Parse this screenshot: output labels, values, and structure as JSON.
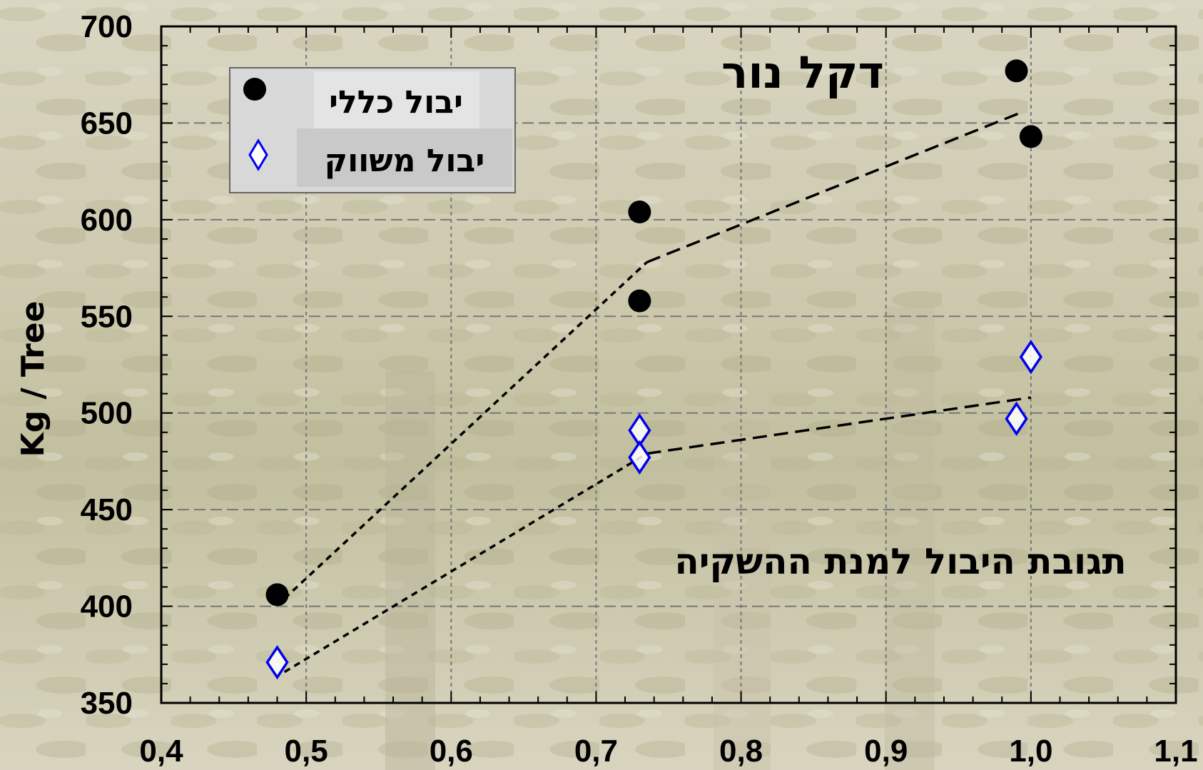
{
  "chart_data": {
    "type": "scatter",
    "title": "דקל נור",
    "subtitle": "תגובת היבול למנת ההשקיה",
    "xlabel": "",
    "ylabel": "Kg / Tree",
    "xlim": [
      0.4,
      1.1
    ],
    "ylim": [
      350,
      700
    ],
    "x_ticks": [
      "0,4",
      "0,5",
      "0,6",
      "0,7",
      "0,8",
      "0,9",
      "1,0",
      "1,1"
    ],
    "x_tick_values": [
      0.4,
      0.5,
      0.6,
      0.7,
      0.8,
      0.9,
      1.0,
      1.1
    ],
    "y_ticks": [
      "350",
      "400",
      "450",
      "500",
      "550",
      "600",
      "650",
      "700"
    ],
    "y_tick_values": [
      350,
      400,
      450,
      500,
      550,
      600,
      650,
      700
    ],
    "grid": true,
    "legend_position": "top-left",
    "series": [
      {
        "name": "יבול כללי",
        "marker": "circle",
        "color": "#000000",
        "points": [
          {
            "x": 0.48,
            "y": 406
          },
          {
            "x": 0.73,
            "y": 604
          },
          {
            "x": 0.73,
            "y": 558
          },
          {
            "x": 0.99,
            "y": 677
          },
          {
            "x": 1.0,
            "y": 643
          }
        ],
        "trend": [
          {
            "x": 0.485,
            "y": 404
          },
          {
            "x": 0.735,
            "y": 578
          },
          {
            "x": 0.995,
            "y": 656
          }
        ]
      },
      {
        "name": "יבול משווק",
        "marker": "diamond-open",
        "color": "#0000ee",
        "points": [
          {
            "x": 0.48,
            "y": 371
          },
          {
            "x": 0.73,
            "y": 491
          },
          {
            "x": 0.73,
            "y": 477
          },
          {
            "x": 0.99,
            "y": 497
          },
          {
            "x": 1.0,
            "y": 529
          }
        ],
        "trend": [
          {
            "x": 0.485,
            "y": 366
          },
          {
            "x": 0.735,
            "y": 479
          },
          {
            "x": 1.0,
            "y": 508
          }
        ]
      }
    ]
  }
}
